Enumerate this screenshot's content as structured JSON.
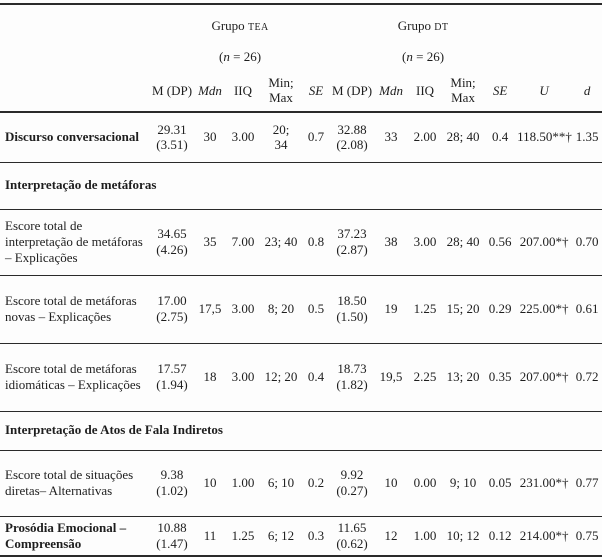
{
  "groups": [
    {
      "name_prefix": "Grupo ",
      "name_caps": "TEA",
      "n_open": "(",
      "n_var": "n",
      "n_rest": " = 26)"
    },
    {
      "name_prefix": "Grupo ",
      "name_caps": "DT",
      "n_open": "(",
      "n_var": "n",
      "n_rest": " = 26)"
    }
  ],
  "stat_columns": [
    {
      "label": "M (DP)",
      "italic": false
    },
    {
      "label": "Mdn",
      "italic": true
    },
    {
      "label": "IIQ",
      "italic": false
    },
    {
      "label": "Min; Max",
      "italic": false
    },
    {
      "label": "SE",
      "italic": true
    }
  ],
  "test_columns": [
    {
      "label": "U",
      "italic": true
    },
    {
      "label": "d",
      "italic": true
    }
  ],
  "rows": [
    {
      "type": "data",
      "bold": true,
      "label": "Discurso conversacional",
      "cells": [
        "29.31\n(3.51)",
        "30",
        "3.00",
        "20;\n34",
        "0.7",
        "32.88\n(2.08)",
        "33",
        "2.00",
        "28; 40",
        "0.4",
        "118.50**†",
        "1.35"
      ]
    },
    {
      "type": "section",
      "label": "Interpretação de metáforas"
    },
    {
      "type": "data",
      "bold": false,
      "label": "Escore total de interpretação de metáforas – Explicações",
      "cells": [
        "34.65\n(4.26)",
        "35",
        "7.00",
        "23; 40",
        "0.8",
        "37.23\n(2.87)",
        "38",
        "3.00",
        "28; 40",
        "0.56",
        "207.00*†",
        "0.70"
      ]
    },
    {
      "type": "data",
      "bold": false,
      "label": "Escore total de metáforas novas – Explicações",
      "cells": [
        "17.00\n(2.75)",
        "17,5",
        "3.00",
        "8; 20",
        "0.5",
        "18.50\n(1.50)",
        "19",
        "1.25",
        "15; 20",
        "0.29",
        "225.00*†",
        "0.61"
      ]
    },
    {
      "type": "data",
      "bold": false,
      "label": "Escore total de metáforas idiomáticas – Explicações",
      "cells": [
        "17.57\n(1.94)",
        "18",
        "3.00",
        "12; 20",
        "0.4",
        "18.73\n(1.82)",
        "19,5",
        "2.25",
        "13; 20",
        "0.35",
        "207.00*†",
        "0.72"
      ]
    },
    {
      "type": "section",
      "label": "Interpretação de Atos de Fala Indiretos"
    },
    {
      "type": "data",
      "bold": false,
      "label": "Escore total de situações diretas– Alternativas",
      "cells": [
        "9.38\n(1.02)",
        "10",
        "1.00",
        "6; 10",
        "0.2",
        "9.92\n(0.27)",
        "10",
        "0.00",
        "9; 10",
        "0.05",
        "231.00*†",
        "0.77"
      ]
    },
    {
      "type": "data",
      "bold": true,
      "label": "Prosódia Emocional – Compreensão",
      "cells": [
        "10.88\n(1.47)",
        "11",
        "1.25",
        "6; 12",
        "0.3",
        "11.65\n(0.62)",
        "12",
        "1.00",
        "10; 12",
        "0.12",
        "214.00*†",
        "0.75"
      ]
    }
  ]
}
